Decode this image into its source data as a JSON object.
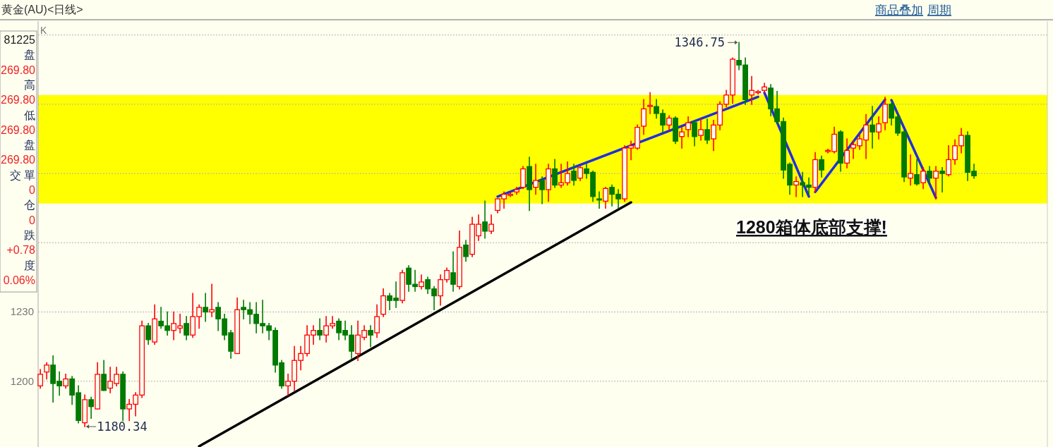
{
  "chart_data": {
    "type": "candlestick",
    "title": "黄金(AU)<日线>",
    "categories": [
      null,
      null,
      null,
      null,
      null,
      null,
      null,
      null,
      null,
      null,
      null,
      null,
      null,
      null,
      null,
      null,
      null,
      null,
      null,
      null,
      null,
      null,
      null,
      null,
      null,
      null,
      null,
      null,
      null,
      null,
      null,
      null,
      null,
      null,
      null,
      null,
      null,
      null,
      null,
      null,
      null,
      null,
      null,
      null,
      null,
      null,
      null,
      null,
      null,
      null,
      null,
      null,
      null,
      null,
      null,
      null,
      null,
      null,
      null,
      null,
      null,
      null,
      null,
      null,
      null,
      null,
      null,
      null,
      null,
      null,
      null,
      null,
      null,
      null,
      null,
      null,
      null,
      null,
      null,
      null,
      null,
      null,
      null,
      null,
      null,
      null,
      null,
      null,
      null,
      null,
      null,
      null,
      null,
      null,
      null,
      null,
      null,
      null,
      null,
      null,
      null,
      null,
      null,
      null,
      null,
      null,
      null,
      null,
      null,
      null,
      null,
      null,
      null,
      null,
      null,
      null,
      null,
      null,
      null,
      null,
      null,
      null,
      null,
      null,
      null,
      null,
      null,
      null,
      null,
      null,
      null,
      null,
      null,
      null,
      null,
      null,
      null,
      null,
      null,
      null,
      null,
      null,
      null,
      null,
      null,
      null,
      null,
      null
    ],
    "ohlc": [
      [
        1198,
        1205,
        1197,
        1203
      ],
      [
        1204,
        1208,
        1201,
        1207
      ],
      [
        1207,
        1211,
        1191,
        1199
      ],
      [
        1200,
        1204,
        1194,
        1198
      ],
      [
        1198,
        1203,
        1197,
        1201
      ],
      [
        1201,
        1202,
        1190,
        1194
      ],
      [
        1195,
        1198,
        1182,
        1183
      ],
      [
        1182,
        1194,
        1180.34,
        1192
      ],
      [
        1192,
        1193,
        1184,
        1189
      ],
      [
        1188,
        1208,
        1188,
        1203
      ],
      [
        1203,
        1209,
        1196,
        1196
      ],
      [
        1197,
        1206,
        1195,
        1200
      ],
      [
        1199,
        1206,
        1198,
        1203
      ],
      [
        1203,
        1204,
        1183,
        1188
      ],
      [
        1188,
        1192,
        1183,
        1190
      ],
      [
        1190,
        1195,
        1185,
        1194
      ],
      [
        1194,
        1226,
        1193,
        1224
      ],
      [
        1224,
        1225,
        1216,
        1218
      ],
      [
        1217,
        1233,
        1216,
        1227
      ],
      [
        1226,
        1232,
        1223,
        1224
      ],
      [
        1224,
        1230,
        1220,
        1222
      ],
      [
        1222,
        1230,
        1218,
        1225
      ],
      [
        1223,
        1229,
        1221,
        1224
      ],
      [
        1225,
        1228,
        1218,
        1220
      ],
      [
        1220,
        1238,
        1219,
        1228
      ],
      [
        1228,
        1233,
        1223,
        1232
      ],
      [
        1232,
        1238,
        1226,
        1230
      ],
      [
        1230,
        1242,
        1228,
        1231
      ],
      [
        1232,
        1234,
        1222,
        1227
      ],
      [
        1227,
        1229,
        1218,
        1220
      ],
      [
        1221,
        1222,
        1210,
        1213
      ],
      [
        1212,
        1236,
        1212,
        1231
      ],
      [
        1232,
        1235,
        1227,
        1231
      ],
      [
        1231,
        1234,
        1225,
        1229
      ],
      [
        1229,
        1234,
        1221,
        1225
      ],
      [
        1225,
        1235,
        1221,
        1224
      ],
      [
        1224,
        1225,
        1218,
        1222
      ],
      [
        1222,
        1223,
        1204,
        1207
      ],
      [
        1208,
        1209,
        1197,
        1198
      ],
      [
        1198,
        1203,
        1194,
        1200
      ],
      [
        1200,
        1215,
        1196,
        1209
      ],
      [
        1209,
        1215,
        1205,
        1212
      ],
      [
        1212,
        1224,
        1211,
        1220
      ],
      [
        1220,
        1224,
        1216,
        1222
      ],
      [
        1222,
        1227,
        1218,
        1220
      ],
      [
        1220,
        1228,
        1217,
        1224
      ],
      [
        1224,
        1228,
        1223,
        1225
      ],
      [
        1226,
        1227,
        1218,
        1221
      ],
      [
        1222,
        1226,
        1218,
        1220
      ],
      [
        1220,
        1224,
        1210,
        1213
      ],
      [
        1212,
        1226,
        1209,
        1220
      ],
      [
        1219,
        1224,
        1218,
        1222
      ],
      [
        1222,
        1224,
        1215,
        1220
      ],
      [
        1221,
        1233,
        1219,
        1228
      ],
      [
        1229,
        1240,
        1228,
        1237
      ],
      [
        1237,
        1238,
        1231,
        1235
      ],
      [
        1236,
        1243,
        1232,
        1235
      ],
      [
        1235,
        1248,
        1234,
        1247
      ],
      [
        1249,
        1250,
        1239,
        1242
      ],
      [
        1242,
        1248,
        1239,
        1241
      ],
      [
        1241,
        1246,
        1240,
        1243
      ],
      [
        1244,
        1245,
        1238,
        1240
      ],
      [
        1240,
        1241,
        1231,
        1237
      ],
      [
        1237,
        1246,
        1233,
        1244
      ],
      [
        1244,
        1249,
        1243,
        1248
      ],
      [
        1247,
        1256,
        1239,
        1242
      ],
      [
        1241,
        1265,
        1240,
        1258
      ],
      [
        1259,
        1261,
        1252,
        1254
      ],
      [
        1255,
        1271,
        1254,
        1268
      ],
      [
        1263,
        1272,
        1261,
        1268
      ],
      [
        1269,
        1278,
        1262,
        1265
      ],
      [
        1265,
        1272,
        1264,
        1268
      ],
      [
        1274,
        1279,
        1273,
        1279
      ],
      [
        1279,
        1282,
        1275,
        1281
      ],
      [
        1280.5,
        1281.5,
        1280,
        1281
      ],
      [
        1282,
        1284,
        1281,
        1283
      ],
      [
        1284,
        1293,
        1283.5,
        1292
      ],
      [
        1293,
        1297,
        1274,
        1283
      ],
      [
        1284,
        1294,
        1281,
        1287
      ],
      [
        1287,
        1288.5,
        1277,
        1283
      ],
      [
        1283,
        1294,
        1278,
        1292
      ],
      [
        1292,
        1296,
        1284,
        1285
      ],
      [
        1285,
        1294,
        1284,
        1286
      ],
      [
        1286,
        1295,
        1285,
        1290
      ],
      [
        1291,
        1294,
        1285,
        1287
      ],
      [
        1288,
        1293,
        1287,
        1292.5
      ],
      [
        1292,
        1294,
        1288,
        1290
      ],
      [
        1290.5,
        1291,
        1278,
        1280
      ],
      [
        1279,
        1282,
        1275,
        1278.5
      ],
      [
        1278,
        1284,
        1275,
        1283.5
      ],
      [
        1284,
        1285,
        1276,
        1281
      ],
      [
        1281,
        1283,
        1275,
        1279
      ],
      [
        1279,
        1302,
        1278,
        1301
      ],
      [
        1301,
        1304,
        1296,
        1302
      ],
      [
        1301,
        1311,
        1300.5,
        1310
      ],
      [
        1310.5,
        1322,
        1307,
        1318
      ],
      [
        1319,
        1325,
        1316,
        1319.5
      ],
      [
        1319,
        1322,
        1314,
        1316
      ],
      [
        1316,
        1317.5,
        1308,
        1311
      ],
      [
        1311,
        1315,
        1309,
        1314
      ],
      [
        1314,
        1314.5,
        1303,
        1304
      ],
      [
        1306,
        1310,
        1301,
        1308
      ],
      [
        1309,
        1314.5,
        1306,
        1312
      ],
      [
        1312,
        1313,
        1302,
        1306
      ],
      [
        1306.5,
        1313.5,
        1304.5,
        1309
      ],
      [
        1309,
        1313.5,
        1303,
        1304.5
      ],
      [
        1305,
        1313,
        1300,
        1311
      ],
      [
        1311,
        1321,
        1309,
        1320
      ],
      [
        1320,
        1326,
        1319,
        1324
      ],
      [
        1324,
        1340,
        1320.5,
        1339.5
      ],
      [
        1339,
        1346.75,
        1335,
        1337
      ],
      [
        1337,
        1340,
        1320,
        1322
      ],
      [
        1324,
        1332,
        1320,
        1326
      ],
      [
        1325,
        1326,
        1324.5,
        1325.5
      ],
      [
        1326,
        1329,
        1325,
        1327.5
      ],
      [
        1327,
        1328.5,
        1315,
        1318
      ],
      [
        1318,
        1325.5,
        1312,
        1312.5
      ],
      [
        1312.5,
        1314,
        1288,
        1291.5
      ],
      [
        1294,
        1294.5,
        1281,
        1285
      ],
      [
        1285,
        1288.5,
        1280,
        1286.5
      ],
      [
        1286,
        1290.5,
        1280,
        1285
      ],
      [
        1285,
        1288,
        1281,
        1284
      ],
      [
        1284,
        1299,
        1282,
        1296
      ],
      [
        1296,
        1297.5,
        1288.5,
        1291.5
      ],
      [
        1299.5,
        1300.5,
        1299,
        1300
      ],
      [
        1299.5,
        1310,
        1299,
        1307
      ],
      [
        1308,
        1308.5,
        1291,
        1294.5
      ],
      [
        1294.5,
        1305,
        1292.5,
        1300
      ],
      [
        1301,
        1304,
        1296.5,
        1302.5
      ],
      [
        1302,
        1307,
        1300.5,
        1305
      ],
      [
        1304.5,
        1315.5,
        1296.5,
        1311
      ],
      [
        1311,
        1319,
        1301,
        1308
      ],
      [
        1308,
        1314.5,
        1305,
        1311.5
      ],
      [
        1312,
        1323,
        1309,
        1320
      ],
      [
        1320,
        1320.5,
        1311,
        1314
      ],
      [
        1314.5,
        1315.5,
        1306.5,
        1307.5
      ],
      [
        1308,
        1308.5,
        1286.5,
        1288.5
      ],
      [
        1288,
        1298,
        1285,
        1290
      ],
      [
        1289.5,
        1296,
        1285,
        1285.5
      ],
      [
        1286,
        1292.5,
        1283.5,
        1291
      ],
      [
        1291,
        1293,
        1286,
        1288
      ],
      [
        1288,
        1293,
        1279,
        1291
      ],
      [
        1291,
        1292.5,
        1282,
        1290
      ],
      [
        1289.5,
        1302,
        1289,
        1296
      ],
      [
        1296,
        1304.5,
        1294,
        1302
      ],
      [
        1302,
        1309.5,
        1299,
        1306.5
      ],
      [
        1306.5,
        1308,
        1287,
        1290.5
      ],
      [
        1291,
        1294,
        1288,
        1289
      ]
    ],
    "series": [
      {
        "type": "line",
        "color": "#000000",
        "values": [
          null,
          null,
          null,
          null,
          null,
          null,
          null,
          null,
          null,
          null,
          null,
          null,
          null,
          null,
          null,
          null,
          null,
          null,
          null,
          null,
          null,
          null,
          null,
          null,
          null,
          1171.8,
          null,
          null,
          null,
          null,
          null,
          null,
          null,
          null,
          null,
          null,
          null,
          null,
          null,
          null,
          null,
          null,
          null,
          null,
          null,
          null,
          null,
          null,
          null,
          null,
          null,
          null,
          null,
          null,
          null,
          null,
          null,
          null,
          null,
          null,
          null,
          null,
          null,
          null,
          null,
          null,
          null,
          null,
          null,
          null,
          null,
          null,
          null,
          null,
          null,
          null,
          null,
          null,
          null,
          null,
          null,
          null,
          null,
          null,
          null,
          null,
          null,
          null,
          null,
          null,
          null,
          null,
          null,
          1277.5,
          null,
          null,
          null,
          null,
          null,
          null,
          null,
          null,
          null,
          null,
          null,
          null,
          null,
          null,
          null,
          null,
          null,
          null,
          null,
          null,
          null,
          null,
          null,
          null,
          null,
          null,
          null,
          null,
          null,
          null,
          null,
          null,
          null,
          null,
          null,
          null,
          null,
          null,
          null,
          null,
          null,
          null,
          null,
          null,
          null,
          null,
          null,
          null,
          null,
          null,
          null,
          null,
          null,
          null
        ]
      },
      {
        "type": "line",
        "color": "#1f2ee0",
        "values": [
          null,
          null,
          null,
          null,
          null,
          null,
          null,
          null,
          null,
          null,
          null,
          null,
          null,
          null,
          null,
          null,
          null,
          null,
          null,
          null,
          null,
          null,
          null,
          null,
          null,
          null,
          null,
          null,
          null,
          null,
          null,
          null,
          null,
          null,
          null,
          null,
          null,
          null,
          null,
          null,
          null,
          null,
          null,
          null,
          null,
          null,
          null,
          null,
          null,
          null,
          null,
          null,
          null,
          null,
          null,
          null,
          null,
          null,
          null,
          null,
          null,
          null,
          null,
          null,
          null,
          null,
          null,
          null,
          null,
          null,
          null,
          null,
          1280,
          null,
          null,
          null,
          null,
          null,
          null,
          null,
          null,
          null,
          null,
          null,
          null,
          null,
          null,
          null,
          null,
          null,
          null,
          null,
          null,
          null,
          null,
          null,
          null,
          null,
          null,
          null,
          null,
          null,
          null,
          null,
          null,
          null,
          null,
          null,
          null,
          null,
          null,
          null,
          null,
          1323.2,
          null,
          null,
          null,
          null,
          null,
          null,
          null,
          null,
          null,
          null,
          null,
          null,
          null,
          null,
          null,
          null,
          null,
          null,
          null,
          null,
          null,
          null,
          null,
          null,
          null,
          null,
          null,
          null,
          null,
          null,
          null,
          null,
          null,
          null
        ]
      },
      {
        "type": "line",
        "color": "#1f2ee0",
        "values": [
          null,
          null,
          null,
          null,
          null,
          null,
          null,
          null,
          null,
          null,
          null,
          null,
          null,
          null,
          null,
          null,
          null,
          null,
          null,
          null,
          null,
          null,
          null,
          null,
          null,
          null,
          null,
          null,
          null,
          null,
          null,
          null,
          null,
          null,
          null,
          null,
          null,
          null,
          null,
          null,
          null,
          null,
          null,
          null,
          null,
          null,
          null,
          null,
          null,
          null,
          null,
          null,
          null,
          null,
          null,
          null,
          null,
          null,
          null,
          null,
          null,
          null,
          null,
          null,
          null,
          null,
          null,
          null,
          null,
          null,
          null,
          null,
          null,
          null,
          null,
          null,
          null,
          null,
          null,
          null,
          null,
          null,
          null,
          null,
          null,
          null,
          null,
          null,
          null,
          null,
          null,
          null,
          null,
          null,
          null,
          null,
          null,
          null,
          null,
          null,
          null,
          null,
          null,
          null,
          null,
          null,
          null,
          null,
          null,
          null,
          null,
          null,
          null,
          null,
          1325,
          null,
          null,
          null,
          null,
          null,
          null,
          1280,
          null,
          null,
          null,
          null,
          null,
          null,
          null,
          null,
          null,
          null,
          null,
          null,
          null,
          null,
          null,
          null,
          null,
          null,
          null,
          null,
          null,
          null,
          null,
          null,
          null,
          null
        ]
      },
      {
        "type": "line",
        "color": "#1f2ee0",
        "values": [
          null,
          null,
          null,
          null,
          null,
          null,
          null,
          null,
          null,
          null,
          null,
          null,
          null,
          null,
          null,
          null,
          null,
          null,
          null,
          null,
          null,
          null,
          null,
          null,
          null,
          null,
          null,
          null,
          null,
          null,
          null,
          null,
          null,
          null,
          null,
          null,
          null,
          null,
          null,
          null,
          null,
          null,
          null,
          null,
          null,
          null,
          null,
          null,
          null,
          null,
          null,
          null,
          null,
          null,
          null,
          null,
          null,
          null,
          null,
          null,
          null,
          null,
          null,
          null,
          null,
          null,
          null,
          null,
          null,
          null,
          null,
          null,
          null,
          null,
          null,
          null,
          null,
          null,
          null,
          null,
          null,
          null,
          null,
          null,
          null,
          null,
          null,
          null,
          null,
          null,
          null,
          null,
          null,
          null,
          null,
          null,
          null,
          null,
          null,
          null,
          null,
          null,
          null,
          null,
          null,
          null,
          null,
          null,
          null,
          null,
          null,
          null,
          null,
          null,
          null,
          null,
          null,
          null,
          null,
          null,
          null,
          null,
          1282,
          null,
          null,
          null,
          null,
          null,
          null,
          null,
          null,
          null,
          null,
          1322,
          null,
          null,
          null,
          null,
          null,
          null,
          null,
          null,
          null,
          null,
          null,
          null,
          null,
          null
        ]
      },
      {
        "type": "line",
        "color": "#1f2ee0",
        "values": [
          null,
          null,
          null,
          null,
          null,
          null,
          null,
          null,
          null,
          null,
          null,
          null,
          null,
          null,
          null,
          null,
          null,
          null,
          null,
          null,
          null,
          null,
          null,
          null,
          null,
          null,
          null,
          null,
          null,
          null,
          null,
          null,
          null,
          null,
          null,
          null,
          null,
          null,
          null,
          null,
          null,
          null,
          null,
          null,
          null,
          null,
          null,
          null,
          null,
          null,
          null,
          null,
          null,
          null,
          null,
          null,
          null,
          null,
          null,
          null,
          null,
          null,
          null,
          null,
          null,
          null,
          null,
          null,
          null,
          null,
          null,
          null,
          null,
          null,
          null,
          null,
          null,
          null,
          null,
          null,
          null,
          null,
          null,
          null,
          null,
          null,
          null,
          null,
          null,
          null,
          null,
          null,
          null,
          null,
          null,
          null,
          null,
          null,
          null,
          null,
          null,
          null,
          null,
          null,
          null,
          null,
          null,
          null,
          null,
          null,
          null,
          null,
          null,
          null,
          null,
          null,
          null,
          null,
          null,
          null,
          null,
          null,
          null,
          null,
          null,
          null,
          null,
          null,
          null,
          null,
          null,
          null,
          null,
          null,
          1321.8,
          null,
          null,
          null,
          null,
          null,
          null,
          1279.5,
          null,
          null,
          null,
          null,
          null,
          null
        ]
      }
    ],
    "ylim": [
      1171.5,
      1356
    ],
    "yticks": [
      1200,
      1230,
      {
        "value": 1260,
        "label": null
      },
      {
        "value": 1290,
        "label": null
      },
      {
        "value": 1320,
        "label": null
      },
      {
        "value": 1350,
        "label": null
      }
    ],
    "tick_labels": "y",
    "grid": "y",
    "bands": [
      {
        "axis": "y",
        "from": 1277,
        "to": 1324,
        "color": "#ffff00"
      }
    ],
    "annotations": [
      "1346.75",
      "1180.34",
      "1280箱体底部支撑!",
      "K",
      "商品叠加",
      "周期",
      "81225",
      "盘",
      "269.80",
      "高",
      "269.80",
      "低",
      "269.80",
      "盘",
      "269.80",
      "交 單",
      "0",
      "仓",
      "0",
      "跌",
      "+0.78",
      "度",
      "0.06%"
    ]
  }
}
